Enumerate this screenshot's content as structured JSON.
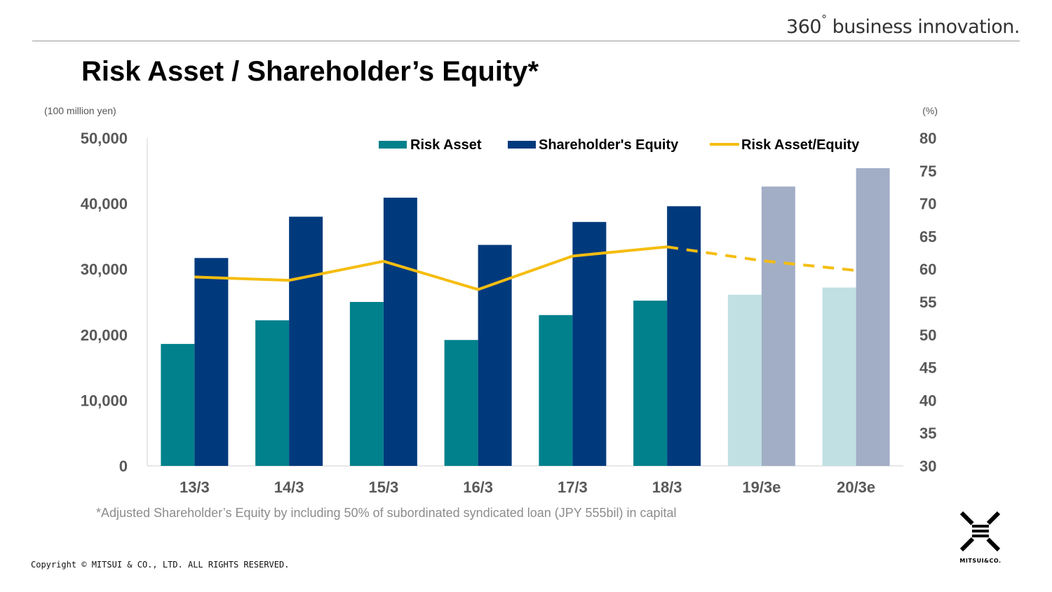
{
  "header": {
    "tagline": "360",
    "tagline_degree": "°",
    "tagline_rest": " business innovation."
  },
  "page_title": "Risk Asset / Shareholder’s Equity*",
  "footnote": "*Adjusted Shareholder’s Equity by including 50% of subordinated syndicated loan (JPY 555bil) in capital",
  "copyright": "Copyright © MITSUI & CO., LTD. ALL RIGHTS RESERVED.",
  "logo": {
    "text": "MITSUI&CO."
  },
  "colors": {
    "risk_asset": "#00818C",
    "equity": "#003A7D",
    "risk_asset_estimate": "#C0E0E3",
    "equity_estimate": "#A2AEC6",
    "ratio_line": "#F5BD10",
    "axis_text": "#595959"
  },
  "chart_data": {
    "type": "bar",
    "categories": [
      "13/3",
      "14/3",
      "15/3",
      "16/3",
      "17/3",
      "18/3",
      "19/3e",
      "20/3e"
    ],
    "estimate_categories": [
      "19/3e",
      "20/3e"
    ],
    "series": [
      {
        "name": "Risk Asset",
        "type": "bar",
        "axis": "left",
        "values": [
          18600,
          22200,
          25000,
          19200,
          23000,
          25200,
          26100,
          27200
        ]
      },
      {
        "name": "Shareholder's Equity",
        "type": "bar",
        "axis": "left",
        "values": [
          31700,
          38000,
          40900,
          33700,
          37200,
          39600,
          42600,
          45400
        ]
      },
      {
        "name": "Risk Asset/Equity",
        "type": "line",
        "axis": "right",
        "values": [
          58.8,
          58.3,
          61.2,
          56.9,
          62.0,
          63.4,
          61.3,
          59.8
        ],
        "dashed_from_index": 5
      }
    ],
    "left_axis": {
      "label": "(100 million yen)",
      "range": [
        0,
        50000
      ],
      "ticks": [
        "0",
        "10,000",
        "20,000",
        "30,000",
        "40,000",
        "50,000"
      ]
    },
    "right_axis": {
      "label": "(%)",
      "range": [
        30,
        80
      ],
      "ticks": [
        "30",
        "35",
        "40",
        "45",
        "50",
        "55",
        "60",
        "65",
        "70",
        "75",
        "80"
      ]
    },
    "legend": {
      "placement": "top-right"
    },
    "grid": false
  }
}
